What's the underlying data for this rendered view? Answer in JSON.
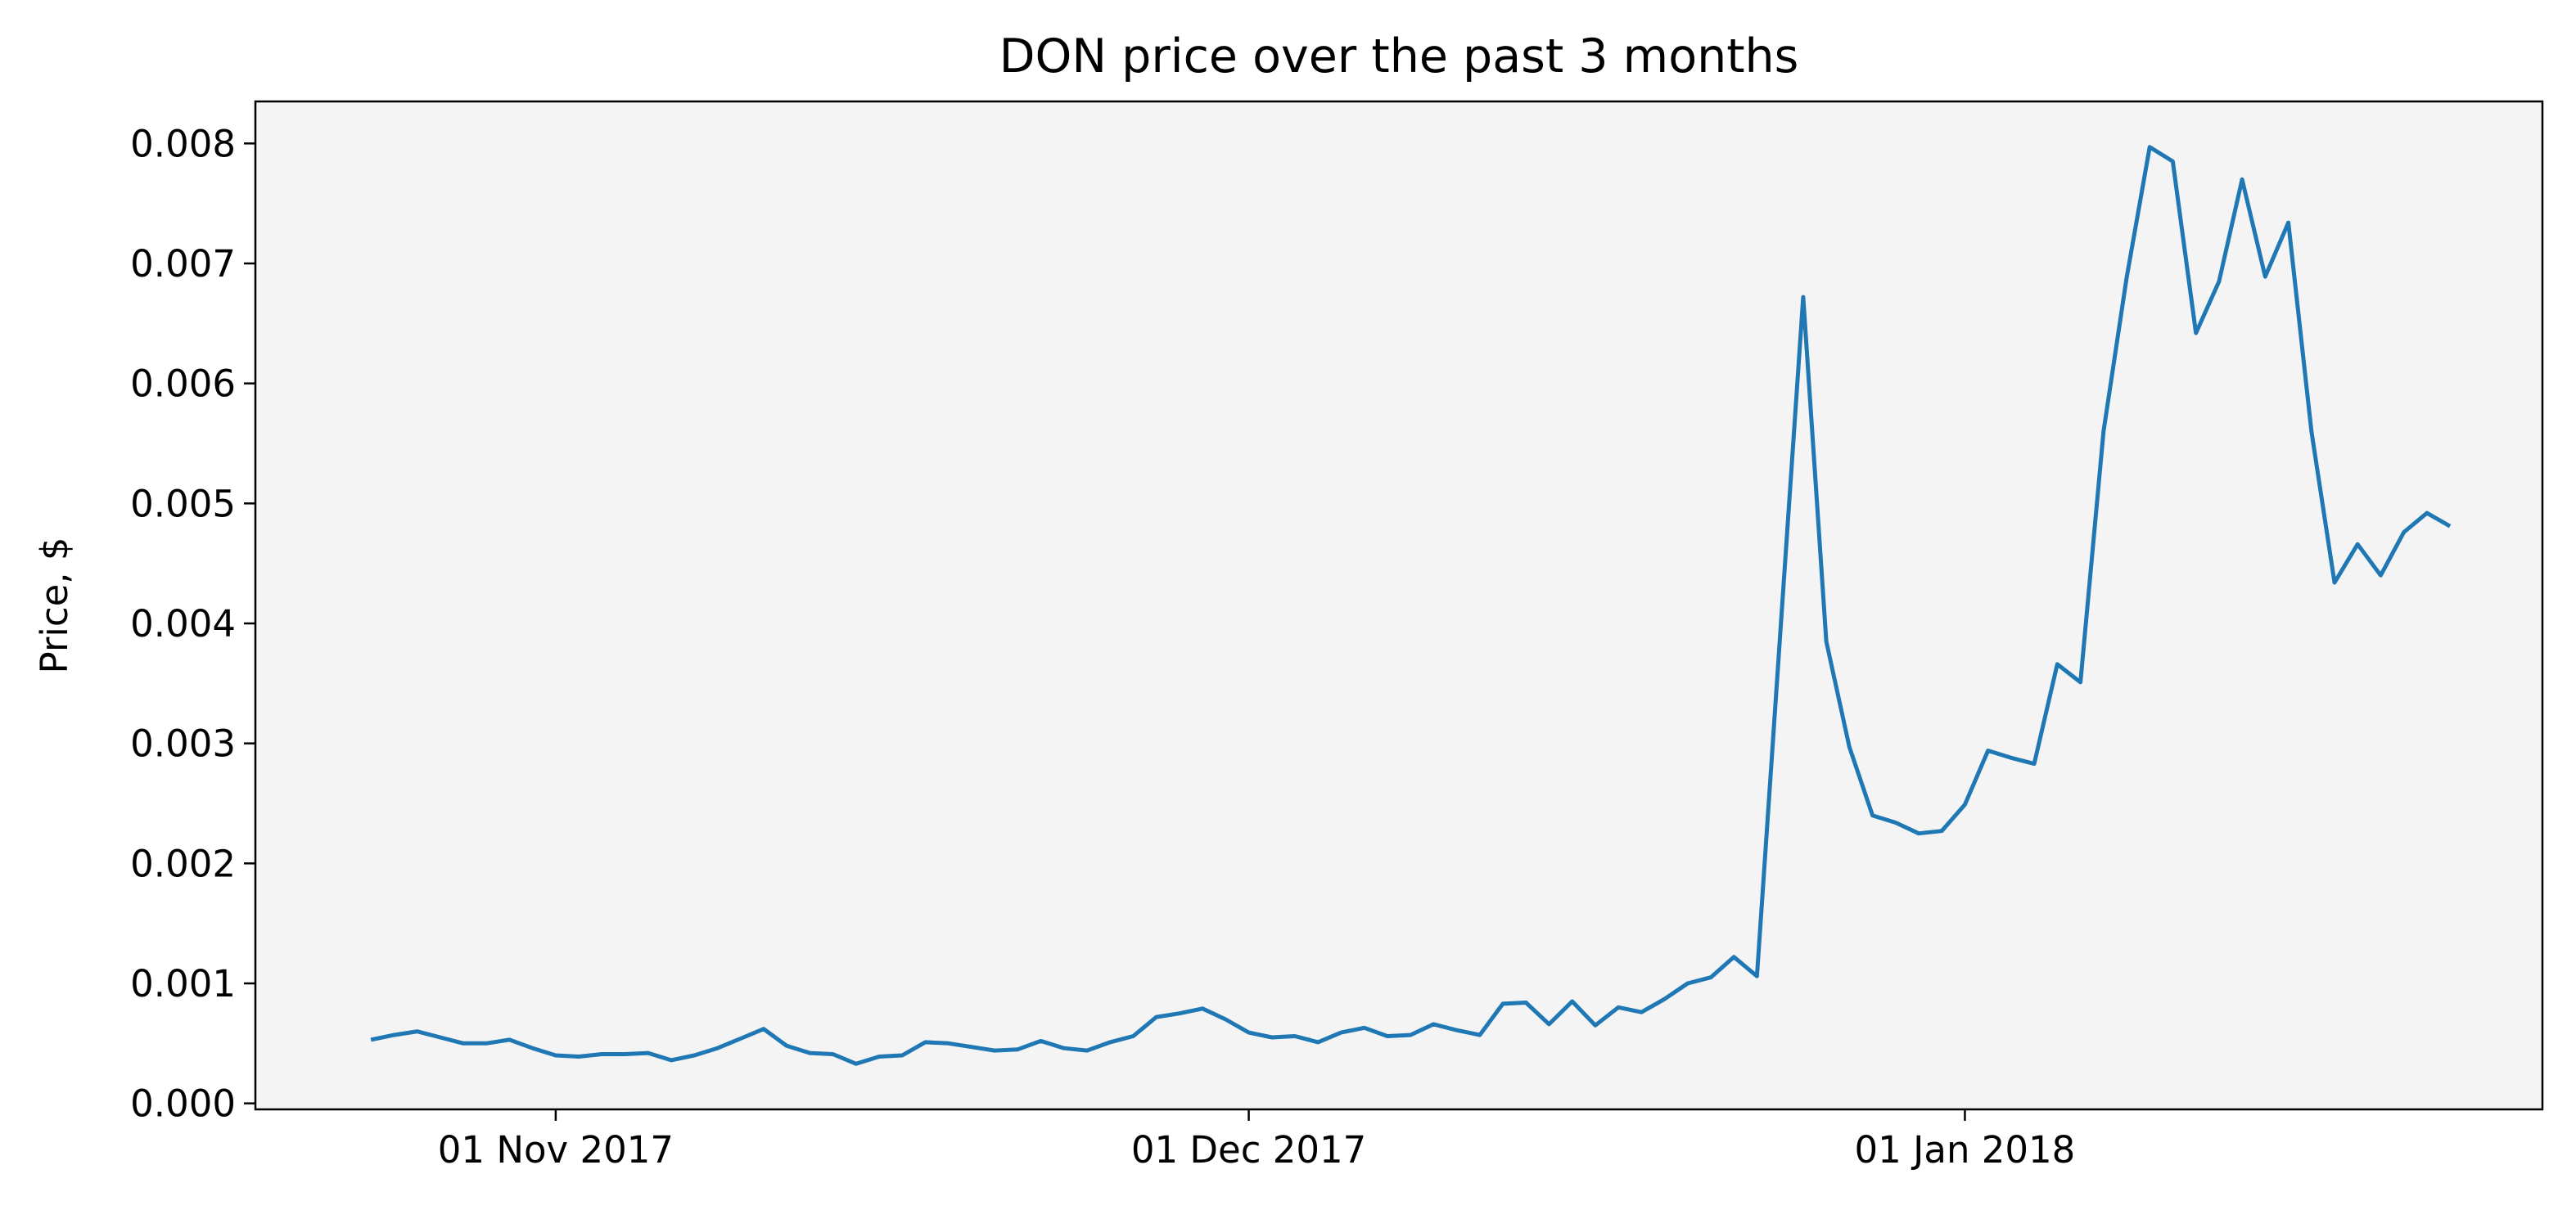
{
  "colors": {
    "line": "#1f77b4",
    "plot_bg": "#f4f4f4",
    "page_bg": "#ffffff"
  },
  "chart_data": {
    "type": "line",
    "title": "DON price over the past 3 months",
    "xlabel": "",
    "ylabel": "Price, $",
    "x_ticks": [
      {
        "date": "2017-11-01",
        "label": "01 Nov 2017"
      },
      {
        "date": "2017-12-01",
        "label": "01 Dec 2017"
      },
      {
        "date": "2018-01-01",
        "label": "01 Jan 2018"
      }
    ],
    "y_ticks": [
      {
        "value": 0.0,
        "label": "0.000"
      },
      {
        "value": 0.001,
        "label": "0.001"
      },
      {
        "value": 0.002,
        "label": "0.002"
      },
      {
        "value": 0.003,
        "label": "0.003"
      },
      {
        "value": 0.004,
        "label": "0.004"
      },
      {
        "value": 0.005,
        "label": "0.005"
      },
      {
        "value": 0.006,
        "label": "0.006"
      },
      {
        "value": 0.007,
        "label": "0.007"
      },
      {
        "value": 0.008,
        "label": "0.008"
      }
    ],
    "xlim": [
      "2017-10-19",
      "2018-01-26"
    ],
    "ylim": [
      -5e-05,
      0.00835
    ],
    "grid": false,
    "series": [
      {
        "x": [
          "2017-10-24",
          "2017-10-25",
          "2017-10-26",
          "2017-10-27",
          "2017-10-28",
          "2017-10-29",
          "2017-10-30",
          "2017-10-31",
          "2017-11-01",
          "2017-11-02",
          "2017-11-03",
          "2017-11-04",
          "2017-11-05",
          "2017-11-06",
          "2017-11-07",
          "2017-11-08",
          "2017-11-09",
          "2017-11-10",
          "2017-11-11",
          "2017-11-12",
          "2017-11-13",
          "2017-11-14",
          "2017-11-15",
          "2017-11-16",
          "2017-11-17",
          "2017-11-18",
          "2017-11-19",
          "2017-11-20",
          "2017-11-21",
          "2017-11-22",
          "2017-11-23",
          "2017-11-24",
          "2017-11-25",
          "2017-11-26",
          "2017-11-27",
          "2017-11-28",
          "2017-11-29",
          "2017-11-30",
          "2017-12-01",
          "2017-12-02",
          "2017-12-03",
          "2017-12-04",
          "2017-12-05",
          "2017-12-06",
          "2017-12-07",
          "2017-12-08",
          "2017-12-09",
          "2017-12-10",
          "2017-12-11",
          "2017-12-12",
          "2017-12-13",
          "2017-12-14",
          "2017-12-15",
          "2017-12-16",
          "2017-12-17",
          "2017-12-18",
          "2017-12-19",
          "2017-12-20",
          "2017-12-21",
          "2017-12-22",
          "2017-12-23",
          "2017-12-24",
          "2017-12-25",
          "2017-12-26",
          "2017-12-27",
          "2017-12-28",
          "2017-12-29",
          "2017-12-30",
          "2017-12-31",
          "2018-01-01",
          "2018-01-02",
          "2018-01-03",
          "2018-01-04",
          "2018-01-05",
          "2018-01-06",
          "2018-01-07",
          "2018-01-08",
          "2018-01-09",
          "2018-01-10",
          "2018-01-11",
          "2018-01-12",
          "2018-01-13",
          "2018-01-14",
          "2018-01-15",
          "2018-01-16",
          "2018-01-17",
          "2018-01-18",
          "2018-01-19",
          "2018-01-20",
          "2018-01-21",
          "2018-01-22"
        ],
        "y": [
          0.00053,
          0.00057,
          0.0006,
          0.00055,
          0.0005,
          0.0005,
          0.00053,
          0.00046,
          0.0004,
          0.00039,
          0.00041,
          0.00041,
          0.00042,
          0.00036,
          0.0004,
          0.00046,
          0.00054,
          0.00062,
          0.00048,
          0.00042,
          0.00041,
          0.00033,
          0.00039,
          0.0004,
          0.00051,
          0.0005,
          0.00047,
          0.00044,
          0.00045,
          0.00052,
          0.00046,
          0.00044,
          0.00051,
          0.00056,
          0.00072,
          0.00075,
          0.00079,
          0.0007,
          0.00059,
          0.00055,
          0.00056,
          0.00051,
          0.00059,
          0.00063,
          0.00056,
          0.00057,
          0.00066,
          0.00061,
          0.00057,
          0.00083,
          0.00084,
          0.00066,
          0.00085,
          0.00065,
          0.0008,
          0.00076,
          0.00087,
          0.001,
          0.00105,
          0.00122,
          0.00106,
          0.0039,
          0.00672,
          0.00385,
          0.00297,
          0.0024,
          0.00234,
          0.00225,
          0.00227,
          0.00249,
          0.00294,
          0.00288,
          0.00283,
          0.00366,
          0.00351,
          0.0056,
          0.00688,
          0.00797,
          0.00785,
          0.00642,
          0.00685,
          0.0077,
          0.00689,
          0.00734,
          0.0056,
          0.00434,
          0.00466,
          0.0044,
          0.00476,
          0.00492,
          0.00481
        ]
      }
    ]
  }
}
